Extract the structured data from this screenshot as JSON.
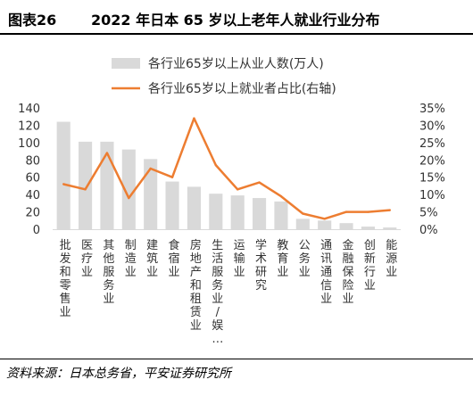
{
  "header": {
    "figure_label": "图表26",
    "title": "2022 年日本 65 岁以上老年人就业行业分布"
  },
  "footer": {
    "source": "资料来源：日本总务省，平安证券研究所"
  },
  "colors": {
    "bar": "#d9d9d9",
    "line": "#ed7d31"
  },
  "chart_data": {
    "type": "bar+line",
    "categories": [
      "批发和零售业",
      "医疗业",
      "其他服务业",
      "制造业",
      "建筑业",
      "食宿业",
      "房地产和租赁业",
      "生活服务业/娱…",
      "运输业",
      "学术研究",
      "教育业",
      "公务业",
      "通讯通信业",
      "金融保险业",
      "创新行业",
      "能源业"
    ],
    "series": [
      {
        "name": "各行业65岁以上从业人数(万人)",
        "type": "bar",
        "axis": "left",
        "values": [
          124,
          101,
          101,
          92,
          81,
          55,
          49,
          41,
          39,
          36,
          32,
          12,
          10,
          7,
          3,
          2
        ]
      },
      {
        "name": "各行业65岁以上就业者占比(右轴)",
        "type": "line",
        "axis": "right",
        "values": [
          13,
          11.5,
          22,
          9,
          17.5,
          15,
          32,
          18.5,
          11.5,
          13.5,
          9.5,
          4.5,
          3,
          5,
          5,
          5.5
        ]
      }
    ],
    "y_left": {
      "min": 0,
      "max": 140,
      "ticks": [
        "0",
        "20",
        "40",
        "60",
        "80",
        "100",
        "120",
        "140"
      ]
    },
    "y_right": {
      "min": 0,
      "max": 35,
      "ticks": [
        "0%",
        "5%",
        "10%",
        "15%",
        "20%",
        "25%",
        "30%",
        "35%"
      ]
    },
    "legend_position": "top",
    "grid": false
  }
}
